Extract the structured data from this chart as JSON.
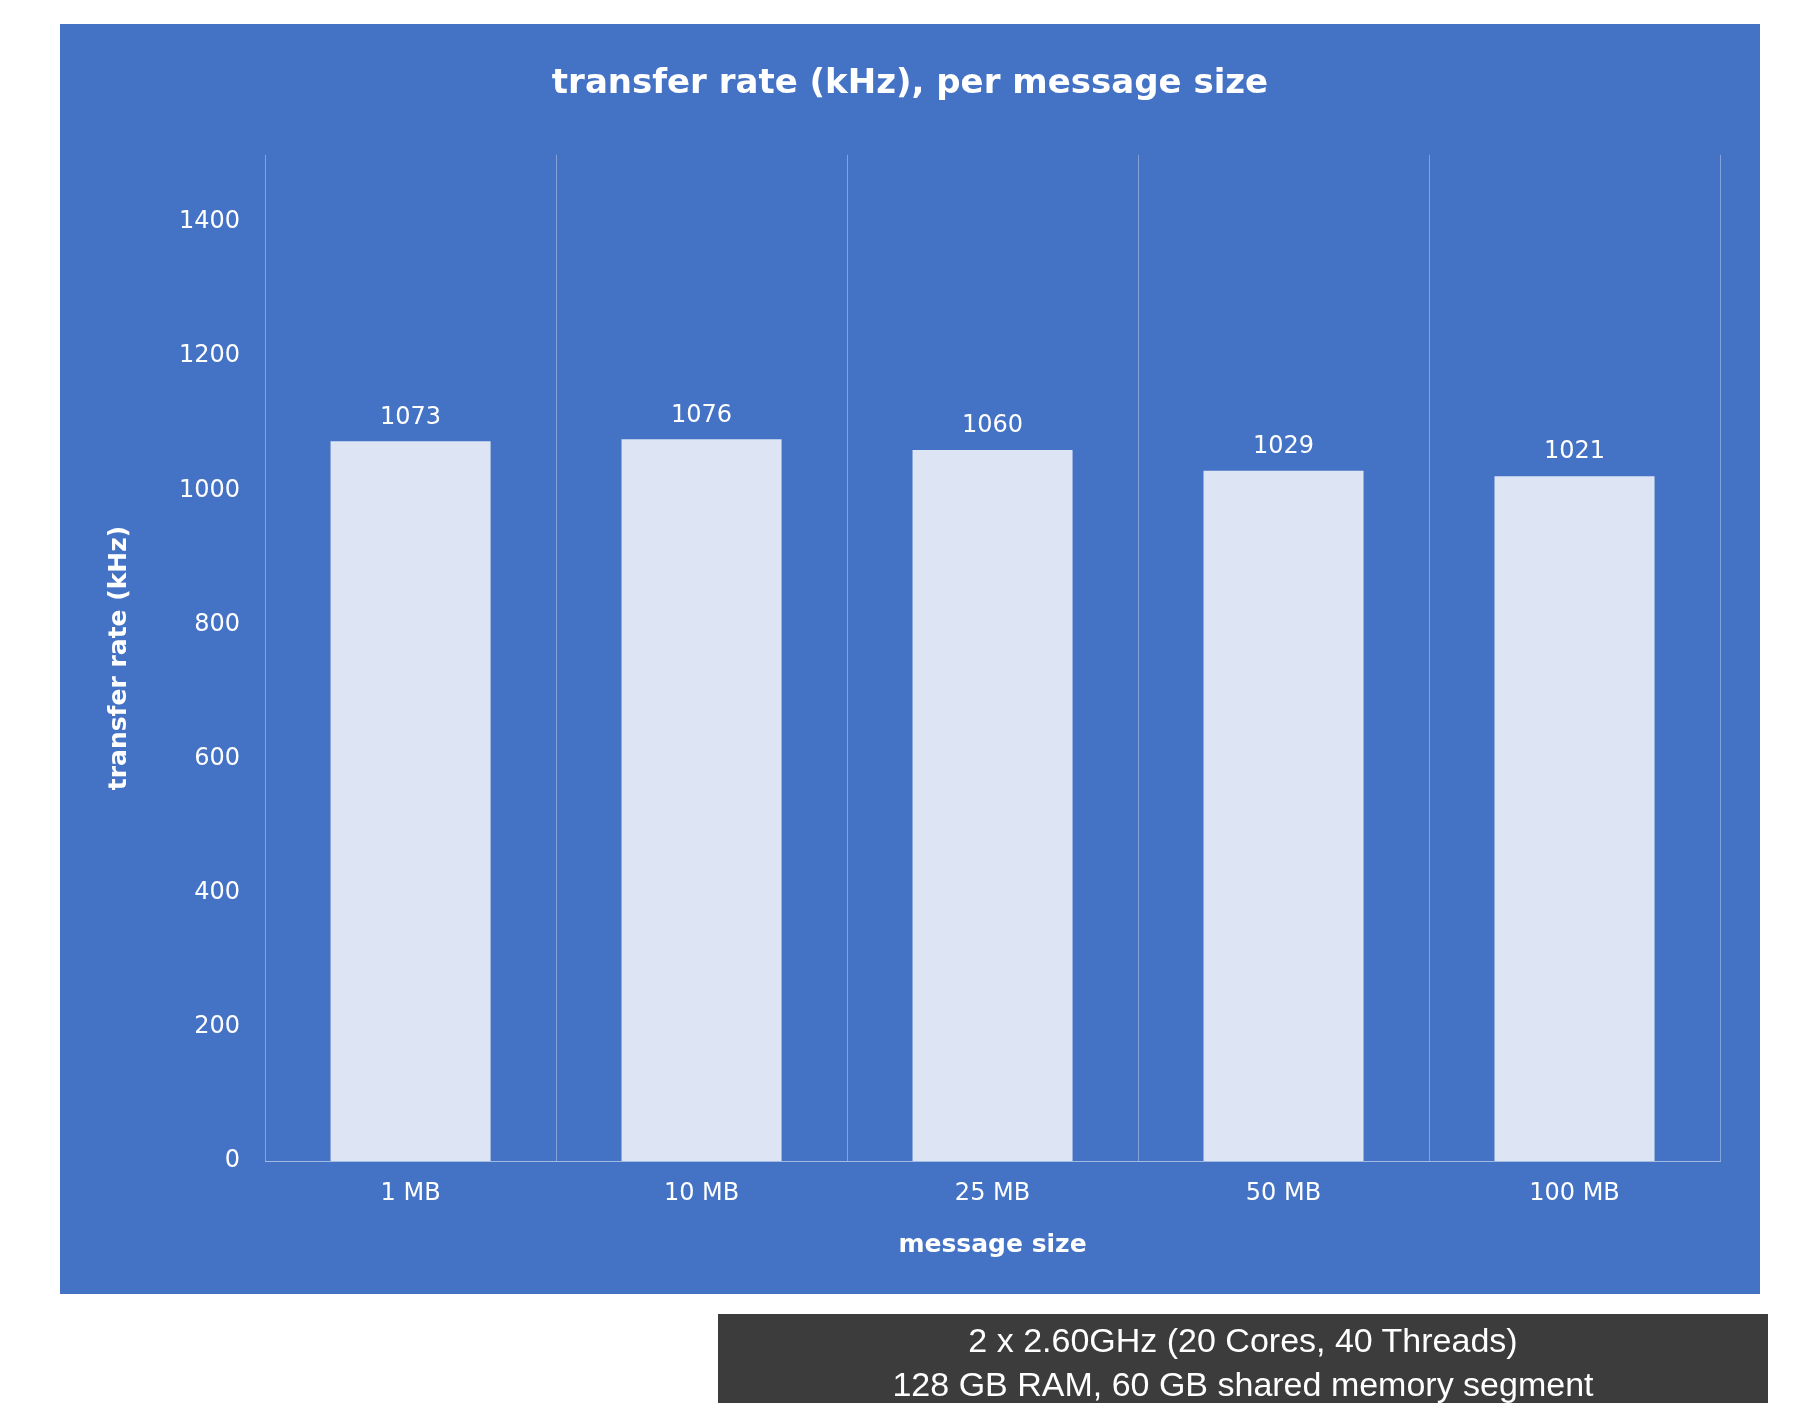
{
  "chart_data": {
    "type": "bar",
    "title": "transfer rate (kHz), per message size",
    "xlabel": "message size",
    "ylabel": "transfer rate (kHz)",
    "categories": [
      "1 MB",
      "10 MB",
      "25 MB",
      "50 MB",
      "100 MB"
    ],
    "values": [
      1073,
      1076,
      1060,
      1029,
      1021
    ],
    "color": "#dde5f4",
    "ylim": [
      0,
      1500
    ],
    "yticks": [
      0,
      200,
      400,
      600,
      800,
      1000,
      1200,
      1400
    ],
    "grid": "x",
    "legend": false,
    "data_labels": true,
    "annotations": [
      "2 x 2.60GHz (20 Cores, 40 Threads)",
      "128 GB RAM, 60 GB shared memory segment"
    ]
  }
}
